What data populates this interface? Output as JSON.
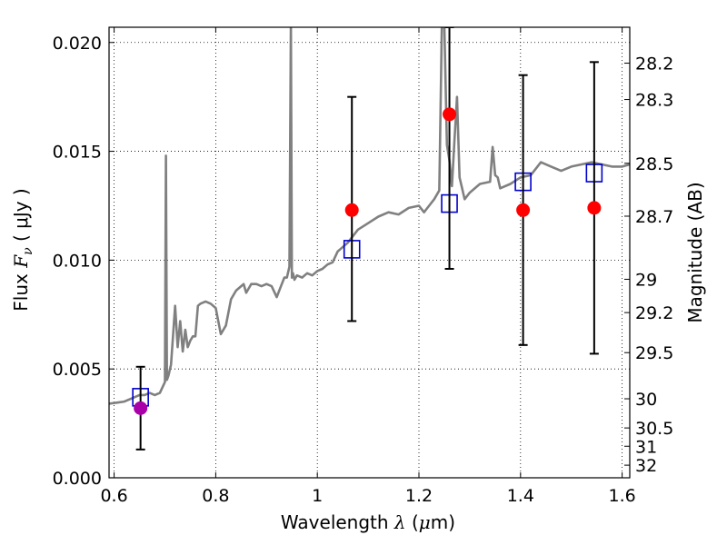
{
  "chart_data": {
    "type": "scatter",
    "xlabel": {
      "prefix": "Wavelength  ",
      "symbol": "λ",
      "units_open": " (",
      "mu": "μ",
      "units_rest": "m)"
    },
    "ylabel": {
      "prefix": "Flux  ",
      "symbol": "F",
      "sub": "ν",
      "units": "  ( μJy )"
    },
    "y2label": "Magnitude (AB)",
    "xlim": [
      0.59,
      1.615
    ],
    "ylim": [
      0.0,
      0.0207
    ],
    "grid": true,
    "x_ticks": [
      {
        "value": 0.6,
        "label": "0.6"
      },
      {
        "value": 0.8,
        "label": "0.8"
      },
      {
        "value": 1.0,
        "label": "1"
      },
      {
        "value": 1.2,
        "label": "1.2"
      },
      {
        "value": 1.4,
        "label": "1.4"
      },
      {
        "value": 1.6,
        "label": "1.6"
      }
    ],
    "y_ticks": [
      {
        "value": 0.0,
        "label": "0.000"
      },
      {
        "value": 0.005,
        "label": "0.005"
      },
      {
        "value": 0.01,
        "label": "0.010"
      },
      {
        "value": 0.015,
        "label": "0.015"
      },
      {
        "value": 0.02,
        "label": "0.020"
      }
    ],
    "mag_ticks": [
      {
        "label": "28.2",
        "flux": 0.01905
      },
      {
        "label": "28.3",
        "flux": 0.01738
      },
      {
        "label": "28.5",
        "flux": 0.01445
      },
      {
        "label": "28.7",
        "flux": 0.01202
      },
      {
        "label": "29",
        "flux": 0.00912
      },
      {
        "label": "29.2",
        "flux": 0.00759
      },
      {
        "label": "29.5",
        "flux": 0.00575
      },
      {
        "label": "30",
        "flux": 0.00363
      },
      {
        "label": "30.5",
        "flux": 0.00229
      },
      {
        "label": "31",
        "flux": 0.00145
      },
      {
        "label": "32",
        "flux": 0.00058
      }
    ],
    "series": [
      {
        "kind": "line",
        "color": "#808080",
        "x": [
          0.59,
          0.62,
          0.64,
          0.65,
          0.66,
          0.67,
          0.68,
          0.69,
          0.7,
          0.702,
          0.704,
          0.707,
          0.712,
          0.72,
          0.725,
          0.73,
          0.735,
          0.74,
          0.745,
          0.75,
          0.755,
          0.76,
          0.765,
          0.77,
          0.78,
          0.79,
          0.8,
          0.81,
          0.82,
          0.83,
          0.84,
          0.85,
          0.855,
          0.86,
          0.865,
          0.87,
          0.88,
          0.89,
          0.9,
          0.91,
          0.92,
          0.93,
          0.935,
          0.94,
          0.945,
          0.948,
          0.95,
          0.952,
          0.955,
          0.96,
          0.97,
          0.98,
          0.99,
          1.0,
          1.01,
          1.02,
          1.03,
          1.04,
          1.06,
          1.08,
          1.1,
          1.12,
          1.14,
          1.16,
          1.18,
          1.2,
          1.21,
          1.22,
          1.23,
          1.24,
          1.245,
          1.25,
          1.255,
          1.26,
          1.265,
          1.27,
          1.275,
          1.28,
          1.29,
          1.3,
          1.32,
          1.34,
          1.345,
          1.35,
          1.355,
          1.36,
          1.38,
          1.4,
          1.42,
          1.44,
          1.46,
          1.48,
          1.5,
          1.52,
          1.54,
          1.56,
          1.58,
          1.6,
          1.615
        ],
        "y": [
          0.0034,
          0.0035,
          0.0037,
          0.0038,
          0.0038,
          0.0039,
          0.0038,
          0.0039,
          0.0044,
          0.0148,
          0.0045,
          0.0047,
          0.0052,
          0.0079,
          0.006,
          0.0072,
          0.0058,
          0.0068,
          0.006,
          0.0063,
          0.0065,
          0.0065,
          0.0079,
          0.008,
          0.0081,
          0.008,
          0.0078,
          0.0066,
          0.007,
          0.0082,
          0.0086,
          0.0088,
          0.0089,
          0.0085,
          0.0087,
          0.0089,
          0.0089,
          0.0088,
          0.0089,
          0.0088,
          0.0083,
          0.0089,
          0.0092,
          0.0092,
          0.0097,
          0.021,
          0.0092,
          0.0094,
          0.0091,
          0.0093,
          0.0092,
          0.0094,
          0.0093,
          0.0095,
          0.0096,
          0.0098,
          0.0099,
          0.0104,
          0.0108,
          0.0114,
          0.0117,
          0.012,
          0.0122,
          0.0121,
          0.0124,
          0.0125,
          0.0122,
          0.0125,
          0.0128,
          0.0132,
          0.0207,
          0.0207,
          0.0153,
          0.0146,
          0.0134,
          0.0155,
          0.0175,
          0.0138,
          0.0128,
          0.0131,
          0.0135,
          0.0136,
          0.0152,
          0.0139,
          0.0138,
          0.0133,
          0.0135,
          0.0138,
          0.0139,
          0.0145,
          0.0143,
          0.0141,
          0.0143,
          0.0144,
          0.0145,
          0.0144,
          0.0143,
          0.0143,
          0.0144
        ]
      },
      {
        "kind": "model_boxes",
        "edge_color": "#0000cc",
        "x": [
          0.652,
          1.068,
          1.26,
          1.405,
          1.545
        ],
        "y": [
          0.0037,
          0.0105,
          0.0126,
          0.0136,
          0.014
        ]
      },
      {
        "kind": "observed",
        "x": [
          0.652,
          1.068,
          1.26,
          1.405,
          1.545
        ],
        "y": [
          0.0032,
          0.0123,
          0.0167,
          0.0123,
          0.0124
        ],
        "yerr_low": [
          0.0013,
          0.0072,
          0.0096,
          0.0061,
          0.0057
        ],
        "yerr_high": [
          0.0051,
          0.0175,
          0.0207,
          0.0185,
          0.0191
        ],
        "colors": [
          "#aa00aa",
          "#ff0000",
          "#ff0000",
          "#ff0000",
          "#ff0000"
        ]
      }
    ]
  }
}
